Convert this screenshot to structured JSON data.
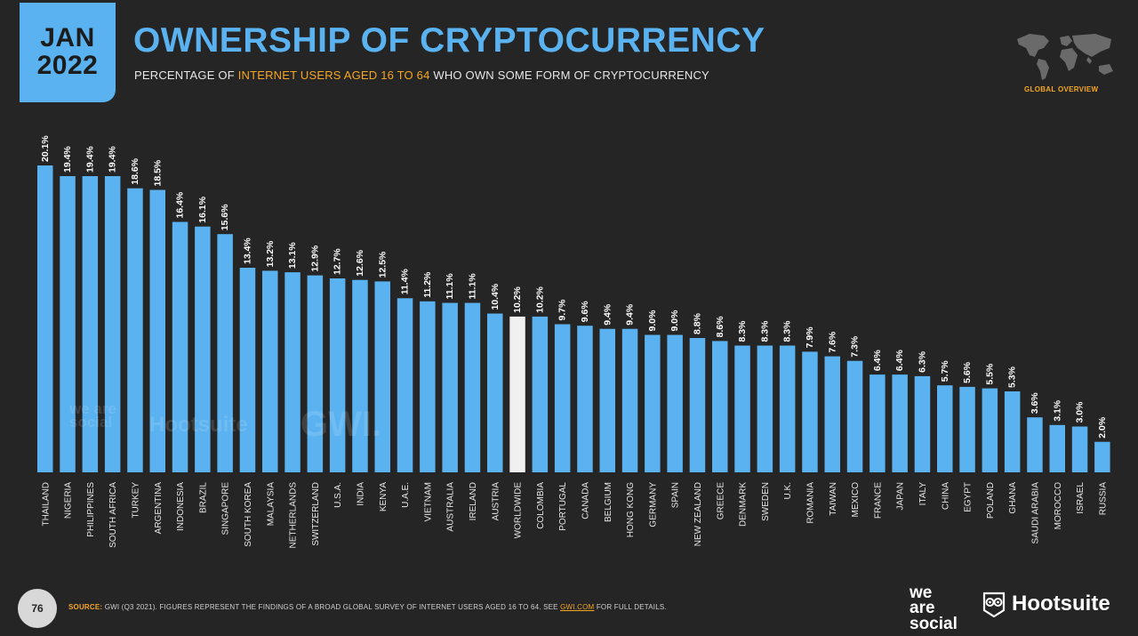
{
  "header": {
    "date_month": "JAN",
    "date_year": "2022",
    "title": "OWNERSHIP OF CRYPTOCURRENCY",
    "subtitle_before": "PERCENTAGE OF ",
    "subtitle_highlight": "INTERNET USERS AGED 16 TO 64",
    "subtitle_after": " WHO OWN SOME FORM OF CRYPTOCURRENCY",
    "overview_label": "GLOBAL OVERVIEW"
  },
  "colors": {
    "background": "#252525",
    "accent_blue": "#5ab2f0",
    "highlight_bar": "#f0f0f0",
    "orange": "#f5a623"
  },
  "chart_data": {
    "type": "bar",
    "title": "OWNERSHIP OF CRYPTOCURRENCY",
    "xlabel": "",
    "ylabel": "",
    "ylim": [
      0,
      20.1
    ],
    "value_suffix": "%",
    "highlight_category": "WORLDWIDE",
    "categories": [
      "THAILAND",
      "NIGERIA",
      "PHILIPPINES",
      "SOUTH AFRICA",
      "TURKEY",
      "ARGENTINA",
      "INDONESIA",
      "BRAZIL",
      "SINGAPORE",
      "SOUTH KOREA",
      "MALAYSIA",
      "NETHERLANDS",
      "SWITZERLAND",
      "U.S.A.",
      "INDIA",
      "KENYA",
      "U.A.E.",
      "VIETNAM",
      "AUSTRALIA",
      "IRELAND",
      "AUSTRIA",
      "WORLDWIDE",
      "COLOMBIA",
      "PORTUGAL",
      "CANADA",
      "BELGIUM",
      "HONG KONG",
      "GERMANY",
      "SPAIN",
      "NEW ZEALAND",
      "GREECE",
      "DENMARK",
      "SWEDEN",
      "U.K.",
      "ROMANIA",
      "TAIWAN",
      "MEXICO",
      "FRANCE",
      "JAPAN",
      "ITALY",
      "CHINA",
      "EGYPT",
      "POLAND",
      "GHANA",
      "SAUDI ARABIA",
      "MOROCCO",
      "ISRAEL",
      "RUSSIA"
    ],
    "values": [
      20.1,
      19.4,
      19.4,
      19.4,
      18.6,
      18.5,
      16.4,
      16.1,
      15.6,
      13.4,
      13.2,
      13.1,
      12.9,
      12.7,
      12.6,
      12.5,
      11.4,
      11.2,
      11.1,
      11.1,
      10.4,
      10.2,
      10.2,
      9.7,
      9.6,
      9.4,
      9.4,
      9.0,
      9.0,
      8.8,
      8.6,
      8.3,
      8.3,
      8.3,
      7.9,
      7.6,
      7.3,
      6.4,
      6.4,
      6.3,
      5.7,
      5.6,
      5.5,
      5.3,
      3.6,
      3.1,
      3.0,
      2.0
    ],
    "value_labels": [
      "20.1%",
      "19.4%",
      "19.4%",
      "19.4%",
      "18.6%",
      "18.5%",
      "16.4%",
      "16.1%",
      "15.6%",
      "13.4%",
      "13.2%",
      "13.1%",
      "12.9%",
      "12.7%",
      "12.6%",
      "12.5%",
      "11.4%",
      "11.2%",
      "11.1%",
      "11.1%",
      "10.4%",
      "10.2%",
      "10.2%",
      "9.7%",
      "9.6%",
      "9.4%",
      "9.4%",
      "9.0%",
      "9.0%",
      "8.8%",
      "8.6%",
      "8.3%",
      "8.3%",
      "8.3%",
      "7.9%",
      "7.6%",
      "7.3%",
      "6.4%",
      "6.4%",
      "6.3%",
      "5.7%",
      "5.6%",
      "5.5%",
      "5.3%",
      "3.6%",
      "3.1%",
      "3.0%",
      "2.0%"
    ]
  },
  "watermark": {
    "were_social": "we are social",
    "hootsuite": "Hootsuite",
    "gwi": "GWI."
  },
  "footer": {
    "page_number": "76",
    "source_label": "SOURCE:",
    "source_text": " GWI (Q3 2021). FIGURES REPRESENT THE FINDINGS OF A BROAD GLOBAL SURVEY OF INTERNET USERS AGED 16 TO 64. SEE ",
    "source_link": "GWI.COM",
    "source_after": " FOR FULL DETAILS.",
    "brand_we": "we",
    "brand_are": "are",
    "brand_social": "social",
    "brand_hootsuite": "Hootsuite"
  }
}
